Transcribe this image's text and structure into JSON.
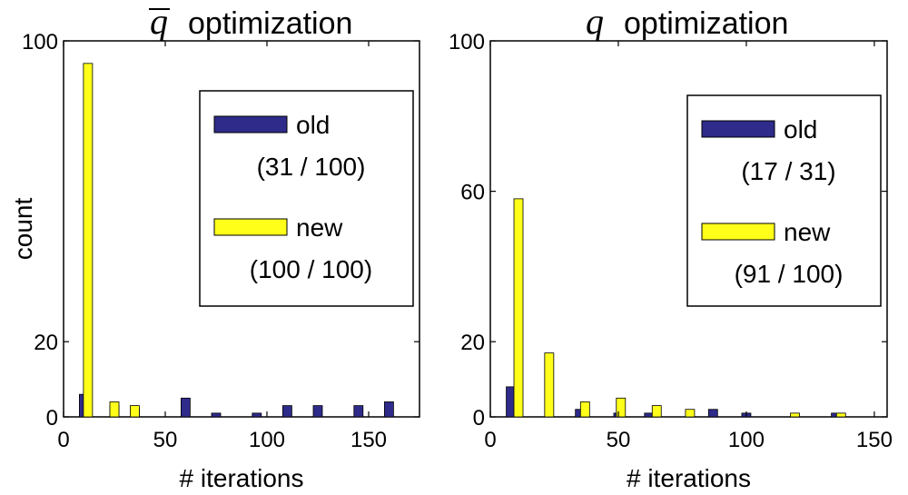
{
  "colors": {
    "old": "#2e2b8a",
    "new": "#ffff1a"
  },
  "chart_data": [
    {
      "type": "bar",
      "title_symbol": "q",
      "title_overline": true,
      "title": "optimization",
      "xlabel": "# iterations",
      "ylabel": "count",
      "xlim": [
        0,
        175
      ],
      "ylim": [
        0,
        100
      ],
      "xticks": [
        0,
        50,
        100,
        150
      ],
      "yticks": [
        0,
        20,
        100
      ],
      "legend": {
        "position": "top-right"
      },
      "series": [
        {
          "name": "old",
          "note": "(31 / 100)",
          "x": [
            10,
            25,
            35,
            60,
            75,
            95,
            110,
            125,
            145,
            160
          ],
          "values": [
            6,
            3,
            2,
            5,
            1,
            1,
            3,
            3,
            3,
            4
          ]
        },
        {
          "name": "new",
          "note": "(100 / 100)",
          "x": [
            12,
            25,
            35
          ],
          "values": [
            94,
            4,
            3
          ]
        }
      ]
    },
    {
      "type": "bar",
      "title_symbol": "q",
      "title_overline": false,
      "title": "optimization",
      "xlabel": "# iterations",
      "ylabel": "",
      "xlim": [
        0,
        155
      ],
      "ylim": [
        0,
        100
      ],
      "xticks": [
        0,
        50,
        100,
        150
      ],
      "yticks": [
        0,
        20,
        60,
        100
      ],
      "legend": {
        "position": "top-right"
      },
      "series": [
        {
          "name": "old",
          "note": "(17 / 31)",
          "x": [
            8,
            35,
            50,
            62,
            87,
            100,
            135
          ],
          "values": [
            8,
            2,
            1,
            1,
            2,
            1,
            1
          ]
        },
        {
          "name": "new",
          "note": "(91 / 100)",
          "x": [
            11,
            23,
            37,
            51,
            65,
            78,
            119,
            137
          ],
          "values": [
            58,
            17,
            4,
            5,
            3,
            2,
            1,
            1
          ]
        }
      ]
    }
  ]
}
